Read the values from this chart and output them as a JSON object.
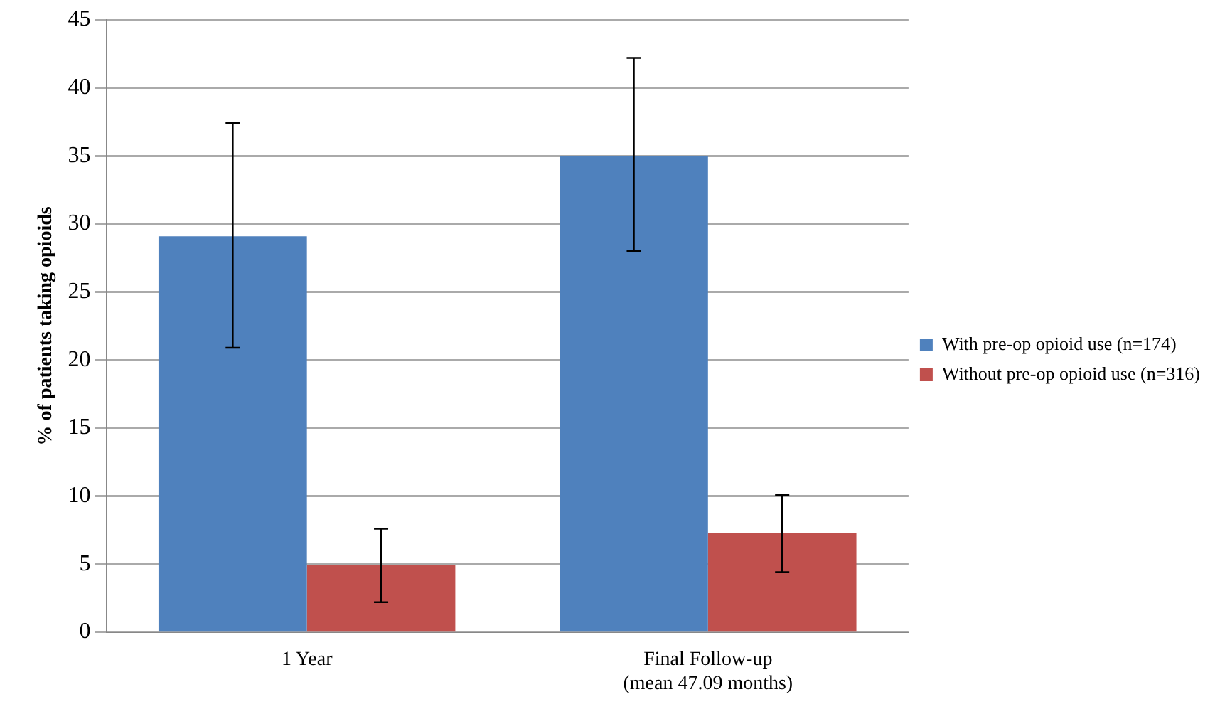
{
  "chart_data": {
    "type": "bar",
    "ylabel": "% of patients taking opioids",
    "categories": [
      "1 Year",
      "Final Follow-up\n(mean 47.09 months)"
    ],
    "series": [
      {
        "name": "With pre-op opioid use (n=174)",
        "color": "#4f81bd",
        "values": [
          29.1,
          35.0
        ],
        "errors": [
          [
            20.9,
            37.4
          ],
          [
            28.0,
            42.2
          ]
        ]
      },
      {
        "name": "Without pre-op opioid use (n=316)",
        "color": "#c0504d",
        "values": [
          4.9,
          7.3
        ],
        "errors": [
          [
            2.2,
            7.6
          ],
          [
            4.4,
            10.1
          ]
        ]
      }
    ],
    "ylim": [
      0,
      45
    ],
    "yticks": [
      0,
      5,
      10,
      15,
      20,
      25,
      30,
      35,
      40,
      45
    ],
    "grid": "y",
    "legend": "right"
  }
}
